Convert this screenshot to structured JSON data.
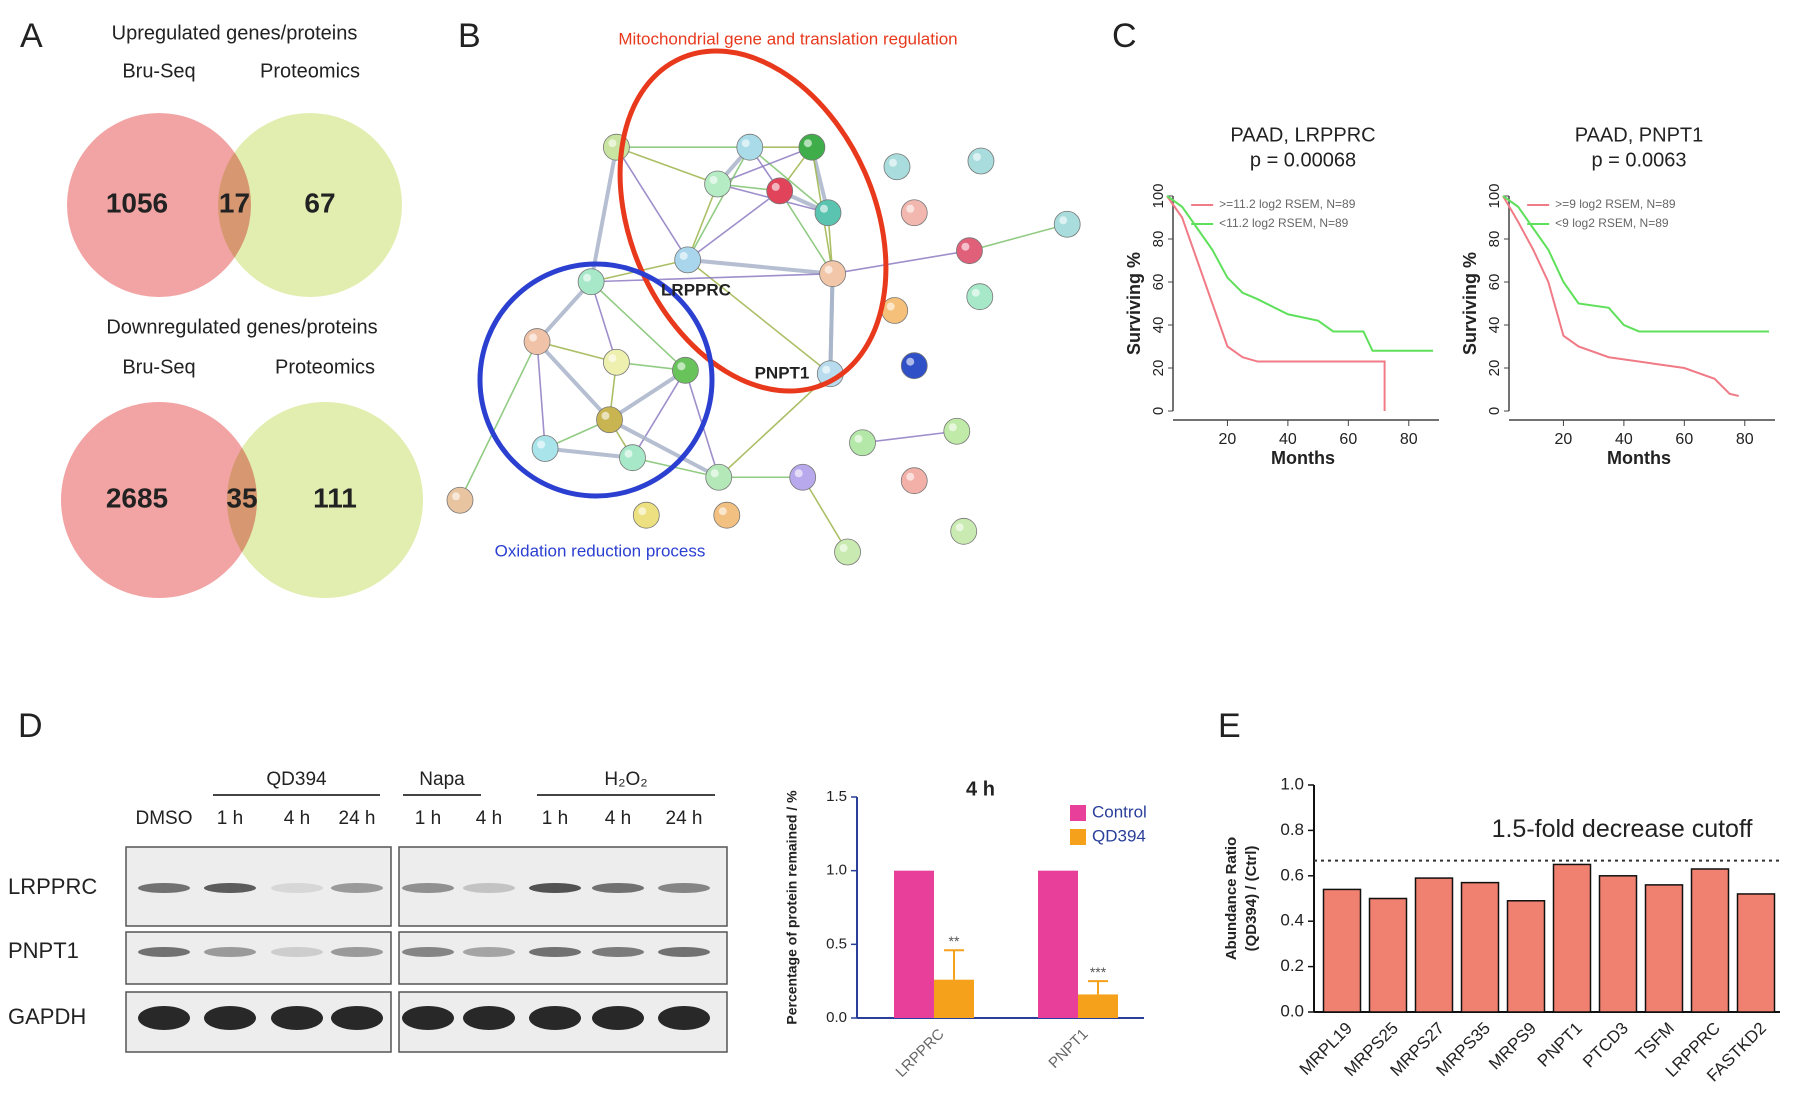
{
  "panels": {
    "a": "A",
    "b": "B",
    "c": "C",
    "d": "D",
    "e": "E"
  },
  "venn": [
    {
      "title": "Upregulated genes/proteins",
      "sets": [
        "Bru-Seq",
        "Proteomics"
      ],
      "counts": [
        1056,
        17,
        67
      ],
      "colors": [
        "#f2a3a3",
        "#e2edb0"
      ]
    },
    {
      "title": "Downregulated genes/proteins",
      "sets": [
        "Bru-Seq",
        "Proteomics"
      ],
      "counts": [
        2685,
        35,
        111
      ],
      "colors": [
        "#f2a3a3",
        "#e2edb0"
      ]
    }
  ],
  "network": {
    "clusters": [
      {
        "label": "Mitochondrial gene and translation regulation",
        "color": "#e8391d"
      },
      {
        "label": "Oxidation reduction process",
        "color": "#2b3fd1"
      }
    ],
    "nodes": [
      "LRPPRC",
      "PNPT1"
    ]
  },
  "blot": {
    "groups": [
      "QD394",
      "Napa",
      "H₂O₂"
    ],
    "lanes": [
      "DMSO",
      "1 h",
      "4 h",
      "24 h",
      "1 h",
      "4 h",
      "1 h",
      "4 h",
      "24 h"
    ],
    "proteins": [
      "LRPPRC",
      "PNPT1",
      "GAPDH"
    ]
  },
  "chart_data": [
    {
      "type": "line",
      "title": "PAAD, LRPPRC",
      "subtitle": "p = 0.00068",
      "x_label": "Months",
      "y_label": "Surviving %",
      "xlim": [
        0,
        90
      ],
      "ylim": [
        0,
        100
      ],
      "xticks": [
        20,
        40,
        60,
        80
      ],
      "yticks": [
        0,
        20,
        40,
        60,
        80,
        100
      ],
      "legend": "top-right",
      "series": [
        {
          "name": ">=11.2 log2 RSEM, N=89",
          "color": "#f07b86",
          "x": [
            0,
            5,
            10,
            15,
            20,
            25,
            30,
            40,
            50,
            60,
            70,
            72,
            72
          ],
          "values": [
            100,
            90,
            70,
            50,
            30,
            25,
            23,
            23,
            23,
            23,
            23,
            23,
            0
          ]
        },
        {
          "name": "<11.2 log2 RSEM, N=89",
          "color": "#5ee05a",
          "x": [
            0,
            5,
            10,
            15,
            20,
            25,
            30,
            40,
            50,
            55,
            65,
            68,
            88
          ],
          "values": [
            100,
            95,
            85,
            75,
            62,
            55,
            52,
            45,
            42,
            37,
            37,
            28,
            28
          ]
        }
      ]
    },
    {
      "type": "line",
      "title": "PAAD, PNPT1",
      "subtitle": "p = 0.0063",
      "x_label": "Months",
      "y_label": "Surviving %",
      "xlim": [
        0,
        90
      ],
      "ylim": [
        0,
        100
      ],
      "xticks": [
        20,
        40,
        60,
        80
      ],
      "yticks": [
        0,
        20,
        40,
        60,
        80,
        100
      ],
      "legend": "top-right",
      "series": [
        {
          "name": ">=9 log2 RSEM, N=89",
          "color": "#f07b86",
          "x": [
            0,
            5,
            10,
            15,
            18,
            20,
            25,
            35,
            50,
            60,
            70,
            75,
            78
          ],
          "values": [
            100,
            88,
            75,
            60,
            45,
            35,
            30,
            25,
            22,
            20,
            15,
            8,
            7
          ]
        },
        {
          "name": "<9 log2 RSEM, N=89",
          "color": "#5ee05a",
          "x": [
            0,
            5,
            10,
            15,
            20,
            25,
            35,
            40,
            45,
            88
          ],
          "values": [
            100,
            95,
            85,
            75,
            60,
            50,
            48,
            40,
            37,
            37
          ]
        }
      ]
    },
    {
      "type": "bar",
      "title": "4 h",
      "y_label": "Percentage of protein remained / %",
      "categories": [
        "LRPPRC",
        "PNPT1"
      ],
      "ylim": [
        0,
        1.5
      ],
      "yticks": [
        {
          "value": 0,
          "label": "0.0"
        },
        {
          "value": 0.5,
          "label": "0.5"
        },
        {
          "value": 1,
          "label": "1.0"
        },
        {
          "value": 1.5,
          "label": "1.5"
        }
      ],
      "legend": "top-right",
      "series": [
        {
          "name": "Control",
          "color": "#e8409a",
          "values": [
            1.0,
            1.0
          ]
        },
        {
          "name": "QD394",
          "color": "#f5a11c",
          "values": [
            0.26,
            0.16
          ],
          "errors": [
            0.2,
            0.09
          ],
          "annotations": [
            "**",
            "***"
          ]
        }
      ]
    },
    {
      "type": "bar",
      "y_label": [
        "Abundance Ratio",
        "(QD394) / (Ctrl)"
      ],
      "categories": [
        "MRPL19",
        "MRPS25",
        "MRPS27",
        "MRPS35",
        "MRPS9",
        "PNPT1",
        "PTCD3",
        "TSFM",
        "LRPPRC",
        "FASTKD2"
      ],
      "values": [
        0.54,
        0.5,
        0.59,
        0.57,
        0.49,
        0.65,
        0.6,
        0.56,
        0.63,
        0.52
      ],
      "color": "#f0806f",
      "ylim": [
        0,
        1.0
      ],
      "yticks": [
        {
          "value": 0,
          "label": "0.0"
        },
        {
          "value": 0.2,
          "label": "0.2"
        },
        {
          "value": 0.4,
          "label": "0.4"
        },
        {
          "value": 0.6,
          "label": "0.6"
        },
        {
          "value": 0.8,
          "label": "0.8"
        },
        {
          "value": 1,
          "label": "1.0"
        }
      ],
      "reference_line": {
        "value": 0.667,
        "label": "1.5-fold decrease cutoff"
      }
    }
  ]
}
